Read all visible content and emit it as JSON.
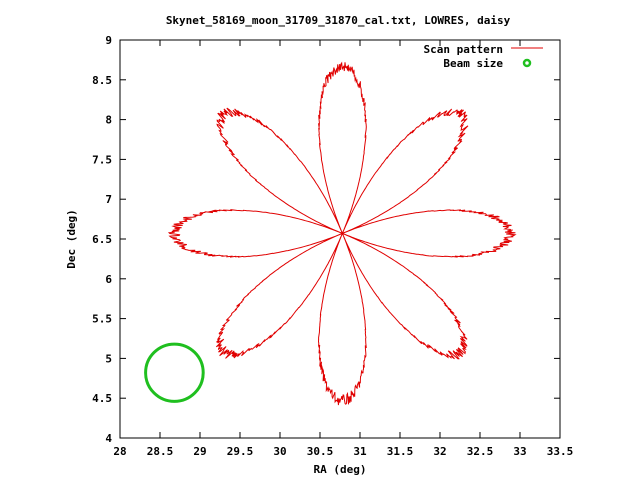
{
  "chart_data": {
    "type": "scatter",
    "title": "Skynet_58169_moon_31709_31870_cal.txt, LOWRES, daisy",
    "xlabel": "RA (deg)",
    "ylabel": "Dec (deg)",
    "xlim": [
      28,
      33.5
    ],
    "ylim": [
      4,
      9
    ],
    "x_ticks": [
      "28",
      "28.5",
      "29",
      "29.5",
      "30",
      "30.5",
      "31",
      "31.5",
      "32",
      "32.5",
      "33",
      "33.5"
    ],
    "y_ticks": [
      "4",
      "4.5",
      "5",
      "5.5",
      "6",
      "6.5",
      "7",
      "7.5",
      "8",
      "8.5",
      "9"
    ],
    "grid": false,
    "legend_position": "top-right",
    "colors": {
      "scan": "#e00000",
      "beam": "#1fbf1f"
    },
    "series": [
      {
        "name": "Scan pattern",
        "style": "line",
        "center": [
          30.78,
          6.57
        ],
        "petals": 8,
        "radius": 2.1
      },
      {
        "name": "Beam size",
        "style": "circle",
        "center": [
          28.68,
          4.82
        ],
        "radius": 0.36
      }
    ]
  }
}
